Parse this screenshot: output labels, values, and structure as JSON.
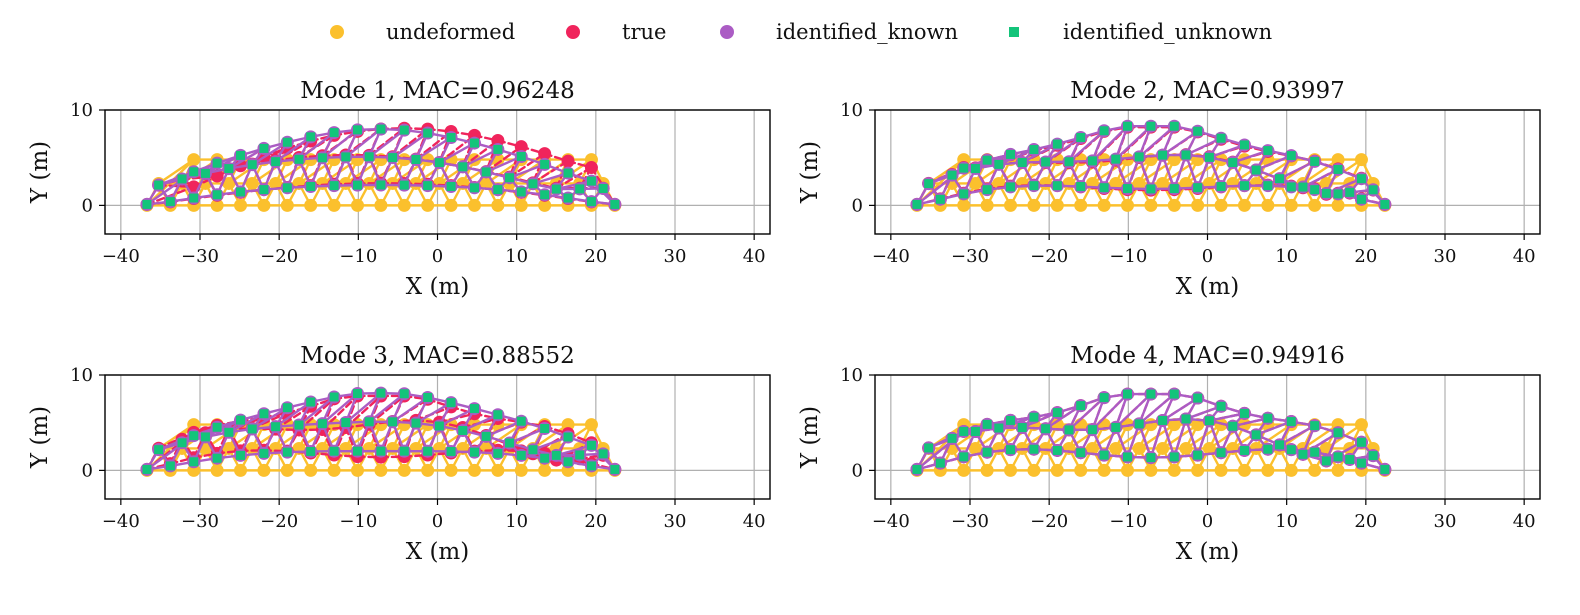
{
  "legend": {
    "items": [
      {
        "label": "undeformed",
        "color": "#fbc02d",
        "marker": "circle"
      },
      {
        "label": "true",
        "color": "#f0245c",
        "marker": "circle"
      },
      {
        "label": "identified_known",
        "color": "#ab5cc4",
        "marker": "circle"
      },
      {
        "label": "identified_unknown",
        "color": "#13c47a",
        "marker": "square"
      }
    ]
  },
  "chart_data": [
    {
      "type": "line",
      "title": "Mode 1, MAC=0.96248",
      "xlabel": "X (m)",
      "ylabel": "Y (m)",
      "xlim": [
        -42,
        42
      ],
      "ylim": [
        -3,
        10
      ],
      "xticks": [
        -40,
        -30,
        -20,
        -10,
        0,
        10,
        20,
        30,
        40
      ],
      "yticks": [
        0,
        10
      ],
      "grid": true,
      "deformation": {
        "true_peak": 8.3,
        "identified_peak": 8.0,
        "true_skew": 0.06,
        "identified_skew": 0.0,
        "true_wobble": 0.0,
        "identified_wobble": 0.2
      }
    },
    {
      "type": "line",
      "title": "Mode 2, MAC=0.93997",
      "xlabel": "X (m)",
      "ylabel": "Y (m)",
      "xlim": [
        -42,
        42
      ],
      "ylim": [
        -3,
        10
      ],
      "xticks": [
        -40,
        -30,
        -20,
        -10,
        0,
        10,
        20,
        30,
        40
      ],
      "yticks": [
        0,
        10
      ],
      "grid": true,
      "deformation": {
        "true_peak": 8.2,
        "identified_peak": 8.3,
        "true_skew": 0.0,
        "identified_skew": 0.0,
        "true_wobble": 1.4,
        "identified_wobble": 1.2
      }
    },
    {
      "type": "line",
      "title": "Mode 3, MAC=0.88552",
      "xlabel": "X (m)",
      "ylabel": "Y (m)",
      "xlim": [
        -42,
        42
      ],
      "ylim": [
        -3,
        10
      ],
      "xticks": [
        -40,
        -30,
        -20,
        -10,
        0,
        10,
        20,
        30,
        40
      ],
      "yticks": [
        0,
        10
      ],
      "grid": true,
      "deformation": {
        "true_peak": 7.8,
        "identified_peak": 8.1,
        "true_skew": 0.0,
        "identified_skew": 0.0,
        "true_wobble": 1.6,
        "identified_wobble": 0.5
      }
    },
    {
      "type": "line",
      "title": "Mode 4, MAC=0.94916",
      "xlabel": "X (m)",
      "ylabel": "Y (m)",
      "xlim": [
        -42,
        42
      ],
      "ylim": [
        -3,
        10
      ],
      "xticks": [
        -40,
        -30,
        -20,
        -10,
        0,
        10,
        20,
        30,
        40
      ],
      "yticks": [
        0,
        10
      ],
      "grid": true,
      "deformation": {
        "true_peak": 8.0,
        "identified_peak": 8.0,
        "true_skew": 0.0,
        "identified_skew": 0.0,
        "true_wobble": 1.8,
        "identified_wobble": 1.8
      }
    }
  ]
}
